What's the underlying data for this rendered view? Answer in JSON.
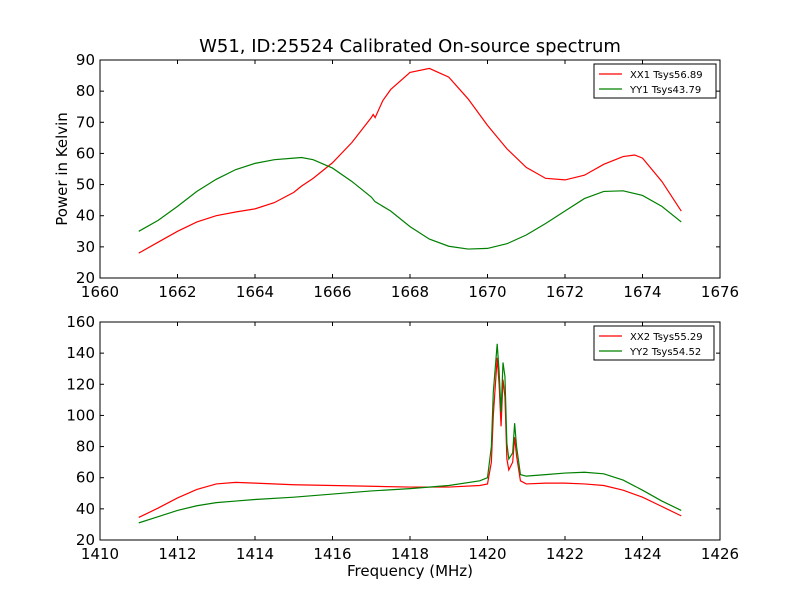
{
  "figure": {
    "title": "W51, ID:25524 Calibrated On-source spectrum",
    "xlabel": "Frequency (MHz)",
    "ylabel": "Power in Kelvin"
  },
  "chart_data": [
    {
      "type": "line",
      "title": "W51, ID:25524 Calibrated On-source spectrum",
      "xlabel": "",
      "ylabel": "Power in Kelvin",
      "xlim": [
        1660,
        1676
      ],
      "ylim": [
        20,
        90
      ],
      "xticks": [
        "1660",
        "1662",
        "1664",
        "1666",
        "1668",
        "1670",
        "1672",
        "1674",
        "1676"
      ],
      "yticks": [
        "20",
        "30",
        "40",
        "50",
        "60",
        "70",
        "80",
        "90"
      ],
      "grid": false,
      "legend": "top-right",
      "series": [
        {
          "name": "XX1 Tsys56.89",
          "color": "#ff0000",
          "x": [
            1661.0,
            1661.5,
            1662.0,
            1662.5,
            1663.0,
            1663.5,
            1664.0,
            1664.5,
            1665.0,
            1665.1,
            1665.2,
            1665.5,
            1666.0,
            1666.5,
            1667.0,
            1667.05,
            1667.1,
            1667.3,
            1667.5,
            1668.0,
            1668.5,
            1669.0,
            1669.5,
            1670.0,
            1670.5,
            1671.0,
            1671.5,
            1672.0,
            1672.5,
            1673.0,
            1673.5,
            1673.8,
            1674.0,
            1674.5,
            1675.0
          ],
          "y": [
            28.0,
            31.5,
            35.0,
            38.0,
            40.0,
            41.2,
            42.2,
            44.2,
            47.5,
            48.5,
            49.5,
            52.0,
            57.0,
            63.5,
            71.5,
            72.5,
            71.5,
            77.0,
            80.5,
            86.0,
            87.3,
            84.5,
            77.5,
            69.0,
            61.5,
            55.5,
            52.0,
            51.5,
            53.0,
            56.5,
            59.0,
            59.5,
            58.5,
            51.0,
            41.5
          ]
        },
        {
          "name": "YY1 Tsys43.79",
          "color": "#008000",
          "x": [
            1661.0,
            1661.5,
            1662.0,
            1662.5,
            1663.0,
            1663.5,
            1664.0,
            1664.5,
            1665.0,
            1665.2,
            1665.5,
            1666.0,
            1666.5,
            1667.0,
            1667.1,
            1667.5,
            1668.0,
            1668.5,
            1669.0,
            1669.5,
            1670.0,
            1670.5,
            1671.0,
            1671.5,
            1672.0,
            1672.5,
            1673.0,
            1673.5,
            1674.0,
            1674.5,
            1675.0
          ],
          "y": [
            35.0,
            38.5,
            43.0,
            47.8,
            51.7,
            54.8,
            56.8,
            58.0,
            58.5,
            58.7,
            58.0,
            55.3,
            51.0,
            46.0,
            44.5,
            41.5,
            36.5,
            32.5,
            30.2,
            29.3,
            29.5,
            31.0,
            33.8,
            37.5,
            41.5,
            45.5,
            47.8,
            48.0,
            46.5,
            43.0,
            38.0
          ]
        }
      ]
    },
    {
      "type": "line",
      "title": "",
      "xlabel": "Frequency (MHz)",
      "ylabel": "",
      "xlim": [
        1410,
        1426
      ],
      "ylim": [
        20,
        160
      ],
      "xticks": [
        "1410",
        "1412",
        "1414",
        "1416",
        "1418",
        "1420",
        "1422",
        "1424",
        "1426"
      ],
      "yticks": [
        "20",
        "40",
        "60",
        "80",
        "100",
        "120",
        "140",
        "160"
      ],
      "grid": false,
      "legend": "top-right",
      "series": [
        {
          "name": "XX2 Tsys55.29",
          "color": "#ff0000",
          "x": [
            1411.0,
            1411.5,
            1412.0,
            1412.5,
            1413.0,
            1413.5,
            1414.0,
            1415.0,
            1416.0,
            1417.0,
            1418.0,
            1419.0,
            1419.8,
            1420.0,
            1420.1,
            1420.15,
            1420.25,
            1420.3,
            1420.35,
            1420.4,
            1420.45,
            1420.5,
            1420.55,
            1420.65,
            1420.7,
            1420.75,
            1420.85,
            1421.0,
            1421.5,
            1422.0,
            1422.5,
            1423.0,
            1423.5,
            1424.0,
            1424.5,
            1425.0
          ],
          "y": [
            34.5,
            40.5,
            47.0,
            52.5,
            56.0,
            57.0,
            56.5,
            55.5,
            55.0,
            54.5,
            54.0,
            54.0,
            55.0,
            56.0,
            70.0,
            100.0,
            137.0,
            120.0,
            93.0,
            123.0,
            112.0,
            72.0,
            65.0,
            70.0,
            86.0,
            74.0,
            58.0,
            56.0,
            56.5,
            56.5,
            56.0,
            55.0,
            52.0,
            47.5,
            41.5,
            35.5
          ]
        },
        {
          "name": "YY2 Tsys54.52",
          "color": "#008000",
          "x": [
            1411.0,
            1411.5,
            1412.0,
            1412.5,
            1413.0,
            1413.5,
            1414.0,
            1415.0,
            1416.0,
            1417.0,
            1418.0,
            1419.0,
            1419.8,
            1420.0,
            1420.1,
            1420.15,
            1420.25,
            1420.3,
            1420.35,
            1420.4,
            1420.45,
            1420.5,
            1420.55,
            1420.65,
            1420.7,
            1420.75,
            1420.85,
            1421.0,
            1421.5,
            1422.0,
            1422.5,
            1423.0,
            1423.5,
            1424.0,
            1424.5,
            1425.0
          ],
          "y": [
            31.0,
            35.0,
            39.0,
            42.0,
            44.0,
            45.0,
            46.0,
            47.5,
            49.5,
            51.5,
            53.0,
            55.0,
            58.0,
            60.0,
            80.0,
            115.0,
            146.0,
            128.0,
            102.0,
            134.0,
            125.0,
            82.0,
            72.0,
            76.0,
            95.0,
            80.0,
            62.0,
            61.0,
            62.0,
            63.0,
            63.5,
            62.5,
            58.5,
            52.0,
            45.0,
            39.0
          ]
        }
      ]
    }
  ]
}
